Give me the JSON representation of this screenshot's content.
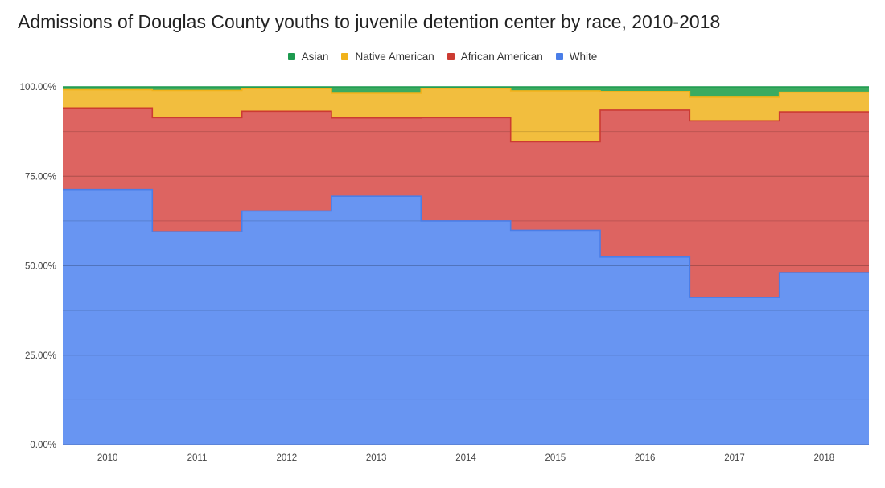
{
  "chart_data": {
    "type": "area",
    "step": true,
    "stacked": "percent",
    "title": "Admissions of Douglas County youths to juvenile detention center by race, 2010-2018",
    "xlabel": "",
    "ylabel": "",
    "ylim": [
      0,
      100
    ],
    "grid": true,
    "legend_position": "top",
    "categories": [
      "2010",
      "2011",
      "2012",
      "2013",
      "2014",
      "2015",
      "2016",
      "2017",
      "2018"
    ],
    "yticks": [
      {
        "value": 0,
        "label": "0.00%"
      },
      {
        "value": 25,
        "label": "25.00%"
      },
      {
        "value": 50,
        "label": "50.00%"
      },
      {
        "value": 75,
        "label": "75.00%"
      },
      {
        "value": 100,
        "label": "100.00%"
      }
    ],
    "series": [
      {
        "name": "White",
        "color": "#4a7ee8",
        "fill": "#6895f2",
        "values": [
          71.3,
          59.5,
          65.3,
          69.4,
          62.5,
          59.9,
          52.4,
          41.1,
          48.1
        ]
      },
      {
        "name": "African American",
        "color": "#cc3b32",
        "fill": "#dd6461",
        "values": [
          22.8,
          31.9,
          27.9,
          21.9,
          28.9,
          24.7,
          41.1,
          49.4,
          44.9
        ]
      },
      {
        "name": "Native American",
        "color": "#f1b21a",
        "fill": "#f2be3e",
        "values": [
          5.1,
          7.6,
          6.3,
          6.9,
          8.2,
          14.3,
          5.2,
          6.6,
          5.5
        ]
      },
      {
        "name": "Asian",
        "color": "#1d9a4f",
        "fill": "#3bab60",
        "values": [
          0.8,
          1.0,
          0.5,
          1.8,
          0.4,
          1.1,
          1.3,
          2.9,
          1.5
        ]
      }
    ],
    "legend_order": [
      "Asian",
      "Native American",
      "African American",
      "White"
    ]
  }
}
